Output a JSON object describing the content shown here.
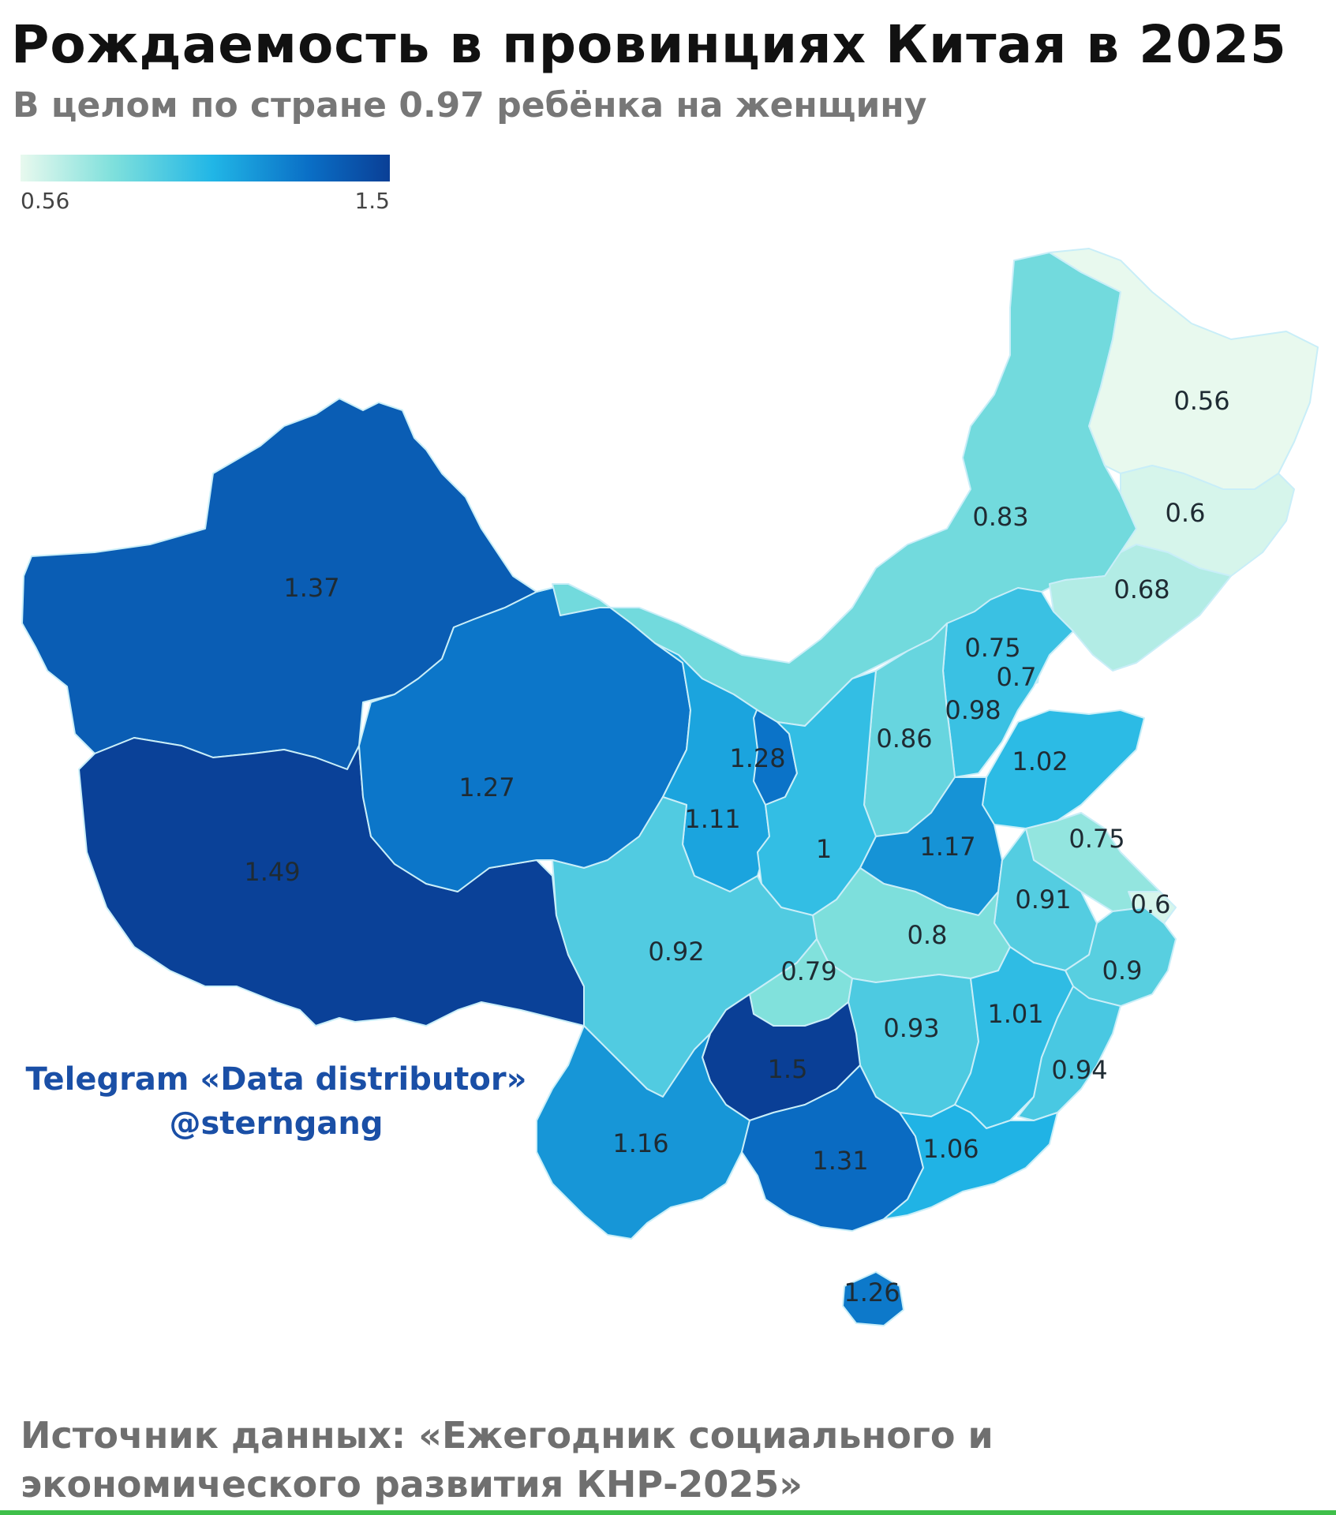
{
  "title": "Рождаемость в провинциях Китая в 2025",
  "subtitle": "В целом по стране 0.97 ребёнка на женщину",
  "legend": {
    "min": "0.56",
    "max": "1.5",
    "min_value": 0.56,
    "max_value": 1.5
  },
  "map": {
    "regions": [
      {
        "id": "xinjiang",
        "value": 1.37,
        "label": "1.37"
      },
      {
        "id": "tibet",
        "value": 1.49,
        "label": "1.49"
      },
      {
        "id": "qinghai",
        "value": 1.27,
        "label": "1.27"
      },
      {
        "id": "gansu",
        "value": 1.11,
        "label": "1.11"
      },
      {
        "id": "ningxia",
        "value": 1.28,
        "label": "1.28"
      },
      {
        "id": "inner-mongolia",
        "value": 0.83,
        "label": "0.83"
      },
      {
        "id": "heilongjiang",
        "value": 0.56,
        "label": "0.56"
      },
      {
        "id": "jilin",
        "value": 0.6,
        "label": "0.6"
      },
      {
        "id": "liaoning",
        "value": 0.68,
        "label": "0.68"
      },
      {
        "id": "beijing",
        "value": 0.75,
        "label": "0.75"
      },
      {
        "id": "tianjin",
        "value": 0.7,
        "label": "0.7"
      },
      {
        "id": "hebei",
        "value": 0.98,
        "label": "0.98"
      },
      {
        "id": "shanxi",
        "value": 0.86,
        "label": "0.86"
      },
      {
        "id": "shandong",
        "value": 1.02,
        "label": "1.02"
      },
      {
        "id": "shaanxi",
        "value": 1.0,
        "label": "1"
      },
      {
        "id": "henan",
        "value": 1.17,
        "label": "1.17"
      },
      {
        "id": "jiangsu",
        "value": 0.75,
        "label": "0.75"
      },
      {
        "id": "anhui",
        "value": 0.91,
        "label": "0.91"
      },
      {
        "id": "shanghai",
        "value": 0.6,
        "label": "0.6"
      },
      {
        "id": "hubei",
        "value": 0.8,
        "label": "0.8"
      },
      {
        "id": "zhejiang",
        "value": 0.9,
        "label": "0.9"
      },
      {
        "id": "sichuan",
        "value": 0.92,
        "label": "0.92"
      },
      {
        "id": "chongqing",
        "value": 0.79,
        "label": "0.79"
      },
      {
        "id": "hunan",
        "value": 0.93,
        "label": "0.93"
      },
      {
        "id": "jiangxi",
        "value": 1.01,
        "label": "1.01"
      },
      {
        "id": "fujian",
        "value": 0.94,
        "label": "0.94"
      },
      {
        "id": "guizhou",
        "value": 1.5,
        "label": "1.5"
      },
      {
        "id": "yunnan",
        "value": 1.16,
        "label": "1.16"
      },
      {
        "id": "guangxi",
        "value": 1.31,
        "label": "1.31"
      },
      {
        "id": "guangdong",
        "value": 1.06,
        "label": "1.06"
      },
      {
        "id": "hainan",
        "value": 1.26,
        "label": "1.26"
      }
    ]
  },
  "watermark": {
    "line1": "Telegram «Data distributor»",
    "line2": "@sterngang"
  },
  "source": "Источник данных: «Ежегодник социального и экономического развития КНР-2025»"
}
